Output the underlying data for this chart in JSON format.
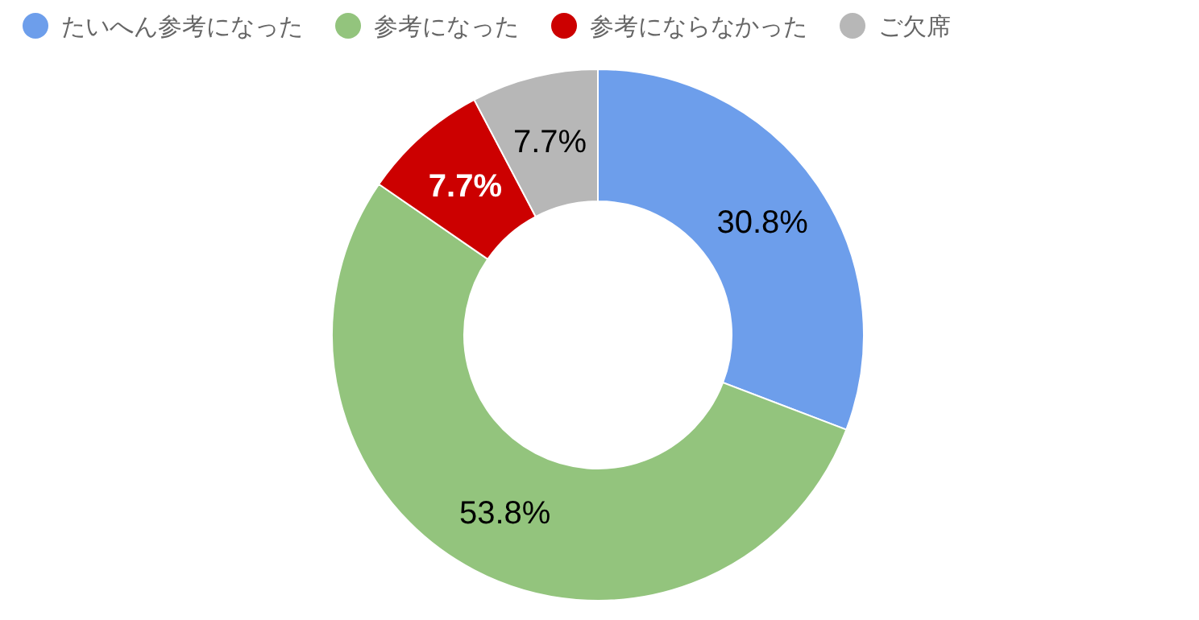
{
  "chart_data": {
    "type": "donut",
    "categories": [
      "たいへん参考になった",
      "参考になった",
      "参考にならなかった",
      "ご欠席"
    ],
    "values": [
      30.8,
      53.8,
      7.7,
      7.7
    ],
    "colors": [
      "#6d9eeb",
      "#93c47d",
      "#cc0000",
      "#b7b7b7"
    ],
    "value_labels": [
      "30.8%",
      "53.8%",
      "7.7%",
      "7.7%"
    ],
    "legend": "top"
  }
}
